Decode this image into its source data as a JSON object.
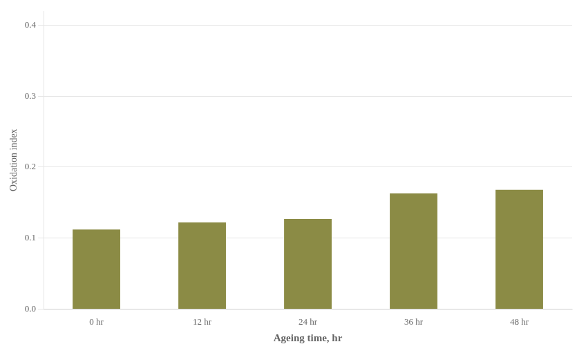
{
  "chart_data": {
    "type": "bar",
    "categories": [
      "0 hr",
      "12 hr",
      "24 hr",
      "36 hr",
      "48 hr"
    ],
    "values": [
      0.112,
      0.122,
      0.127,
      0.163,
      0.168
    ],
    "color": "#8B8B45",
    "xlabel": "Ageing time, hr",
    "ylabel": "Oxidation index",
    "ylim": [
      0,
      0.42
    ],
    "yticks": [
      {
        "value": 0,
        "label": "0.0"
      },
      0.1,
      0.2,
      0.3,
      0.4
    ],
    "grid": true
  }
}
